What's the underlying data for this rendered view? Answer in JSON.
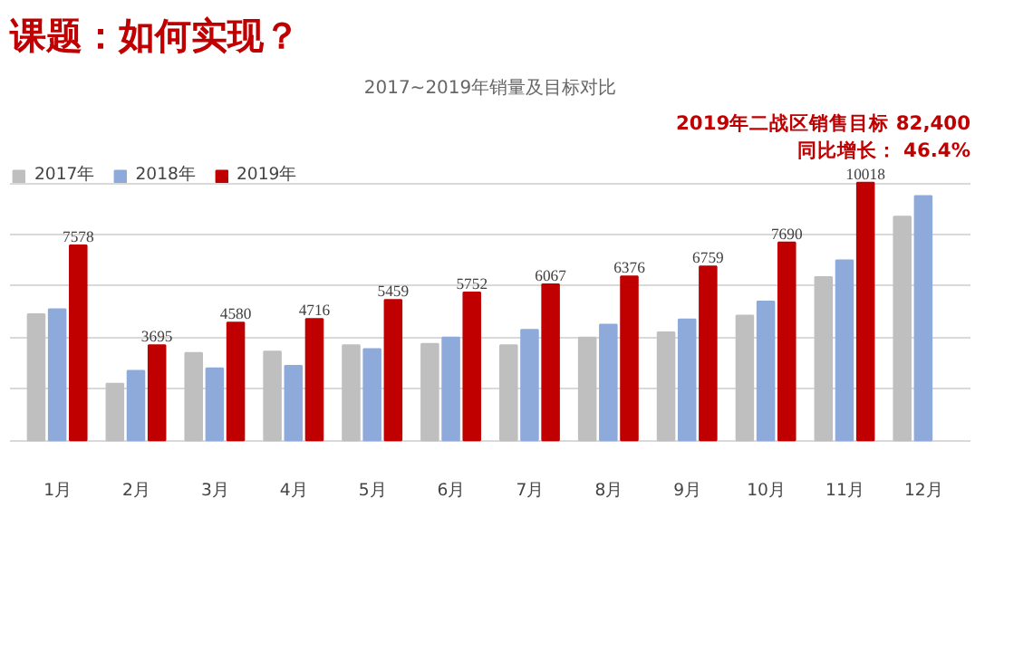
{
  "chart_data": {
    "type": "bar",
    "title": "课题：如何实现？",
    "subtitle": "2017~2019年销量及目标对比",
    "annotations": [
      "2019年二战区销售目标",
      "82,400",
      "同比增长：",
      "46.4%"
    ],
    "categories": [
      "1月",
      "2月",
      "3月",
      "4月",
      "5月",
      "6月",
      "7月",
      "8月",
      "9月",
      "10月",
      "11月",
      "12月"
    ],
    "series": [
      {
        "name": "2017年",
        "color": "#bfbfbf",
        "values": [
          4900,
          2200,
          3400,
          3450,
          3700,
          3750,
          3700,
          4000,
          4200,
          4850,
          6350,
          8700
        ]
      },
      {
        "name": "2018年",
        "color": "#8eaadb",
        "values": [
          5100,
          2700,
          2800,
          2900,
          3550,
          4000,
          4300,
          4500,
          4700,
          5400,
          7000,
          9500
        ]
      },
      {
        "name": "2019年",
        "color": "#c00000",
        "values": [
          7578,
          3695,
          4580,
          4716,
          5459,
          5752,
          6067,
          6376,
          6759,
          7690,
          10018,
          null
        ],
        "value_labels": [
          "7578",
          "3695",
          "4580",
          "4716",
          "5459",
          "5752",
          "6067",
          "6376",
          "6759",
          "7690",
          "10018",
          null
        ]
      }
    ],
    "tick_labels": "x",
    "grid": "y",
    "legend": "top left"
  }
}
